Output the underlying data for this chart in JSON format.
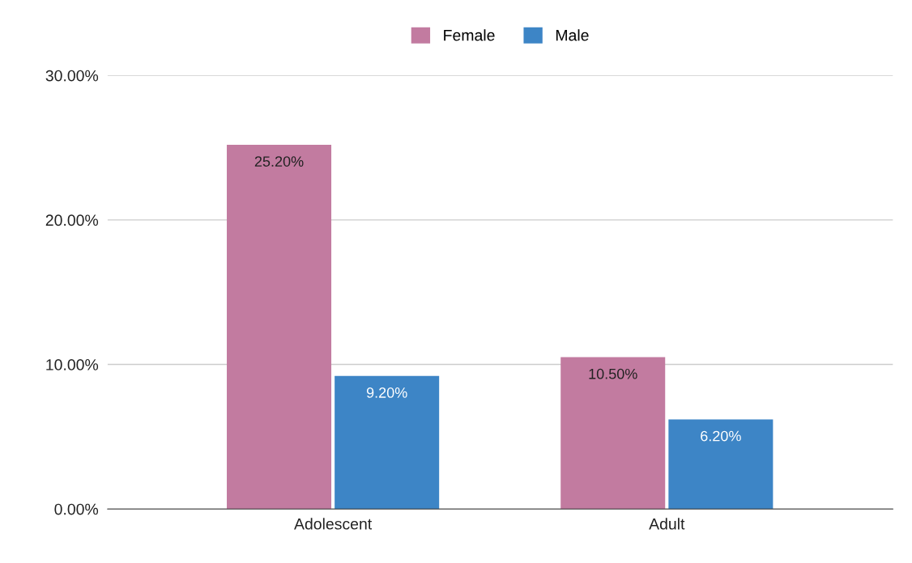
{
  "chart_data": {
    "type": "bar",
    "categories": [
      "Adolescent",
      "Adult"
    ],
    "series": [
      {
        "name": "Female",
        "color": "#c27ba0",
        "values": [
          25.2,
          10.5
        ],
        "value_labels": [
          "25.20%",
          "10.50%"
        ]
      },
      {
        "name": "Male",
        "color": "#3d85c6",
        "values": [
          9.2,
          6.2
        ],
        "value_labels": [
          "9.20%",
          "6.20%"
        ]
      }
    ],
    "ylim": [
      0,
      30
    ],
    "yticks": [
      {
        "value": 0,
        "label": "0.00%"
      },
      {
        "value": 10,
        "label": "10.00%"
      },
      {
        "value": 20,
        "label": "20.00%"
      },
      {
        "value": 30,
        "label": "30.00%"
      }
    ],
    "grid": "y",
    "legend": "top"
  }
}
